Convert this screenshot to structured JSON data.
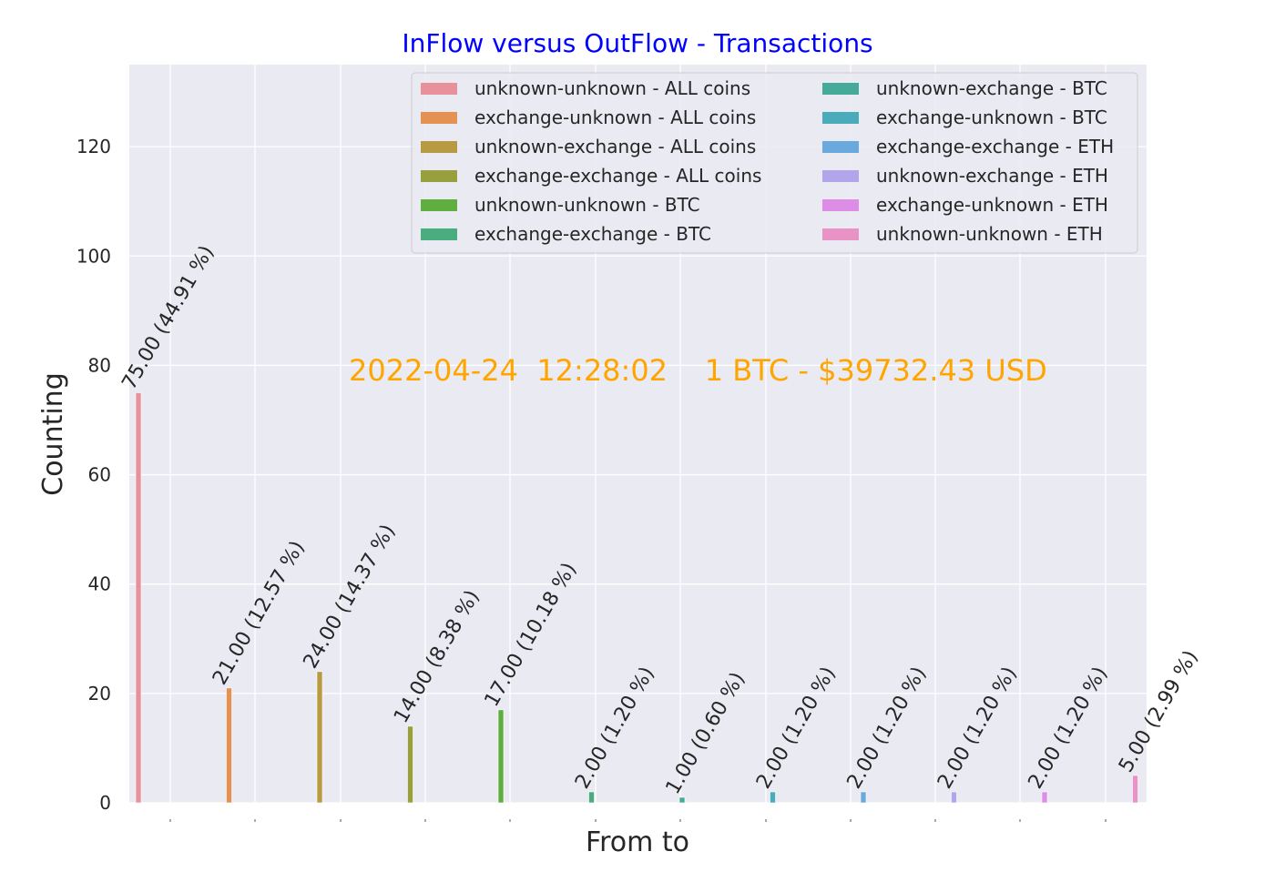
{
  "chart_data": {
    "type": "bar",
    "title": "InFlow versus OutFlow - Transactions",
    "xlabel": "From to",
    "ylabel": "Counting",
    "ylim": [
      0,
      135
    ],
    "yticks": [
      0,
      20,
      40,
      60,
      80,
      100,
      120
    ],
    "grid": true,
    "legend_placement": "top-right",
    "annotation": "2022-04-24  12:28:02    1 BTC - $39732.43 USD",
    "colors": {
      "title": "#0000ff",
      "annotation": "#ffa500",
      "plot_bg": "#eaeaf2",
      "grid": "#ffffff"
    },
    "series": [
      {
        "name": "unknown-unknown - ALL coins",
        "value": 75,
        "label": "75.00 (44.91 %)",
        "color": "#e8919b"
      },
      {
        "name": "exchange-unknown - ALL coins",
        "value": 21,
        "label": "21.00 (12.57 %)",
        "color": "#e59152"
      },
      {
        "name": "unknown-exchange - ALL coins",
        "value": 24,
        "label": "24.00 (14.37 %)",
        "color": "#b89a43"
      },
      {
        "name": "exchange-exchange - ALL coins",
        "value": 14,
        "label": "14.00 (8.38 %)",
        "color": "#98a03e"
      },
      {
        "name": "unknown-unknown - BTC",
        "value": 17,
        "label": "17.00 (10.18 %)",
        "color": "#5fae3f"
      },
      {
        "name": "exchange-exchange - BTC",
        "value": 2,
        "label": "2.00 (1.20 %)",
        "color": "#49ad80"
      },
      {
        "name": "unknown-exchange - BTC",
        "value": 1,
        "label": "1.00 (0.60 %)",
        "color": "#46aa9a"
      },
      {
        "name": "exchange-unknown - BTC",
        "value": 2,
        "label": "2.00 (1.20 %)",
        "color": "#4aabbb"
      },
      {
        "name": "exchange-exchange - ETH",
        "value": 2,
        "label": "2.00 (1.20 %)",
        "color": "#69a9dd"
      },
      {
        "name": "unknown-exchange - ETH",
        "value": 2,
        "label": "2.00 (1.20 %)",
        "color": "#b3a5ec"
      },
      {
        "name": "exchange-unknown - ETH",
        "value": 2,
        "label": "2.00 (1.20 %)",
        "color": "#de8de6"
      },
      {
        "name": "unknown-unknown - ETH",
        "value": 5,
        "label": "5.00 (2.99 %)",
        "color": "#e892c6"
      }
    ]
  }
}
